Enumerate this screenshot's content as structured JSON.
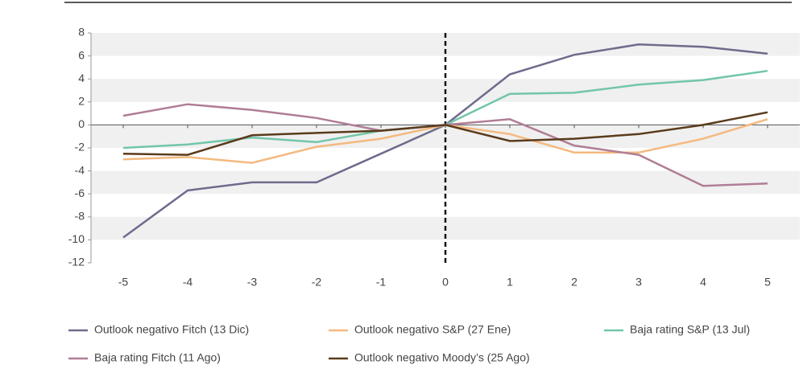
{
  "chart_data": {
    "type": "line",
    "x": [
      -5,
      -4,
      -3,
      -2,
      -1,
      0,
      1,
      2,
      3,
      4,
      5
    ],
    "series": [
      {
        "name": "Outlook negativo Fitch (13 Dic)",
        "color": "#6e6b8c",
        "values": [
          -9.8,
          -5.7,
          -5.0,
          -5.0,
          -2.5,
          0,
          4.4,
          6.1,
          7.0,
          6.8,
          6.2
        ]
      },
      {
        "name": "Outlook negativo S&P (27 Ene)",
        "color": "#f4b97f",
        "values": [
          -3.0,
          -2.8,
          -3.3,
          -1.9,
          -1.2,
          0,
          -0.8,
          -2.4,
          -2.4,
          -1.2,
          0.5
        ]
      },
      {
        "name": "Baja rating S&P (13 Jul)",
        "color": "#72c6aa",
        "values": [
          -2.0,
          -1.7,
          -1.1,
          -1.5,
          -0.5,
          0,
          2.7,
          2.8,
          3.5,
          3.9,
          4.7
        ]
      },
      {
        "name": "Baja rating Fitch (11 Ago)",
        "color": "#b07d96",
        "values": [
          0.8,
          1.8,
          1.3,
          0.6,
          -0.5,
          0,
          0.5,
          -1.8,
          -2.6,
          -5.3,
          -5.1
        ]
      },
      {
        "name": "Outlook negativo Moody’s (25 Ago)",
        "color": "#5a3b1c",
        "values": [
          -2.5,
          -2.6,
          -0.9,
          -0.7,
          -0.5,
          0,
          -1.4,
          -1.2,
          -0.8,
          0.0,
          1.1
        ]
      }
    ],
    "xlim": [
      -5.5,
      5.5
    ],
    "xticks": [
      -5,
      -4,
      -3,
      -2,
      -1,
      0,
      1,
      2,
      3,
      4,
      5
    ],
    "ylim": [
      -12,
      8
    ],
    "yticks": [
      -12,
      -10,
      -8,
      -6,
      -4,
      -2,
      0,
      2,
      4,
      6,
      8
    ],
    "vline": 0,
    "banded_grid": true,
    "legend": "bottom"
  }
}
